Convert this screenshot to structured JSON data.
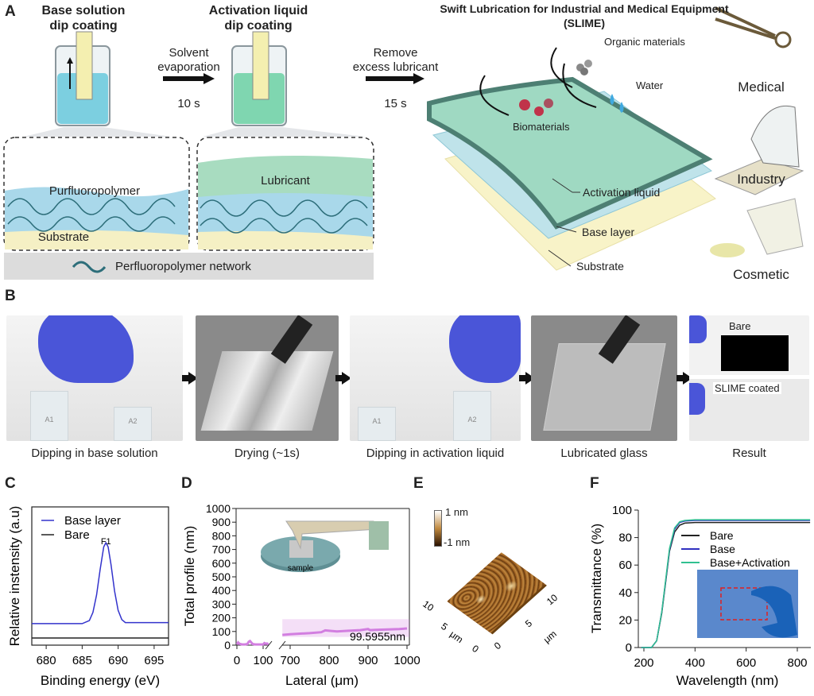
{
  "panel_a": {
    "label": "A",
    "step1_title": "Base solution\ndip coating",
    "step1_line1": "Base solution",
    "step1_line2": "dip coating",
    "arrow1_line1": "Solvent",
    "arrow1_line2": "evaporation",
    "arrow1_time": "10 s",
    "step2_line1": "Activation liquid",
    "step2_line2": "dip coating",
    "arrow2_line1": "Remove",
    "arrow2_line2": "excess lubricant",
    "arrow2_time": "15 s",
    "box_left": {
      "layer_top": "Purfluoropolymer",
      "layer_bottom": "Substrate"
    },
    "box_right": {
      "layer_top": "Lubricant"
    },
    "legend": "Perfluoropolymer network",
    "slime_title_line1": "Swift Lubrication for Industrial and Medical Equipment",
    "slime_title_line2": "(SLIME)",
    "slime_labels": {
      "organic": "Organic materials",
      "water": "Water",
      "bio": "Biomaterials",
      "activation": "Activation liquid",
      "base": "Base layer",
      "substrate": "Substrate"
    },
    "applications": [
      "Medical",
      "Industry",
      "Cosmetic"
    ],
    "colors": {
      "base": "#a9d8ea",
      "lubricant": "#a8dcc0",
      "substrate": "#f5f0c4",
      "network": "#2d6e7a"
    }
  },
  "panel_b": {
    "label": "B",
    "steps": [
      "Dipping in base solution",
      "Drying (~1s)",
      "Dipping in activation liquid",
      "Lubricated glass",
      "Result"
    ],
    "vial_labels": [
      "A1",
      "A2"
    ],
    "result_labels": [
      "Bare",
      "SLIME coated"
    ]
  },
  "chart_data": [
    {
      "panel": "C",
      "type": "line",
      "xlabel": "Binding energy (eV)",
      "ylabel": "Relative instensity (a.u)",
      "xlim": [
        678,
        697
      ],
      "ylim": [
        0,
        1.35
      ],
      "xticks": [
        680,
        685,
        690,
        695
      ],
      "annotation": "F1",
      "legend_placement": "top-left",
      "series": [
        {
          "name": "Base layer",
          "color": "#3333cc",
          "x": [
            678,
            680,
            682,
            684,
            685,
            686,
            686.5,
            687,
            687.5,
            688,
            688.3,
            688.6,
            689,
            689.5,
            690,
            690.5,
            691,
            692,
            694,
            697
          ],
          "y": [
            0.21,
            0.21,
            0.21,
            0.21,
            0.21,
            0.24,
            0.32,
            0.49,
            0.74,
            0.96,
            1.0,
            0.96,
            0.79,
            0.53,
            0.34,
            0.25,
            0.22,
            0.22,
            0.22,
            0.22
          ]
        },
        {
          "name": "Bare",
          "color": "#222222",
          "x": [
            678,
            697
          ],
          "y": [
            0.07,
            0.07
          ]
        }
      ]
    },
    {
      "panel": "D",
      "type": "line",
      "xlabel": "Lateral (μm)",
      "ylabel": "Total profile (nm)",
      "ylim": [
        0,
        1000
      ],
      "yticks": [
        0,
        100,
        200,
        300,
        400,
        500,
        600,
        700,
        800,
        900,
        1000
      ],
      "xticks": [
        0,
        100,
        700,
        800,
        900,
        1000
      ],
      "broken_axis": [
        [
          0,
          120
        ],
        [
          680,
          1000
        ]
      ],
      "inset_label": "sample",
      "annotation": "99.5955nm",
      "band": [
        60,
        190
      ],
      "color": "#d27ee0",
      "series": [
        {
          "x": [
            0,
            5,
            10,
            20,
            30,
            40,
            45,
            50,
            55,
            60,
            70,
            80,
            90,
            100,
            105,
            110,
            115,
            120
          ],
          "y": [
            5,
            20,
            10,
            5,
            5,
            8,
            25,
            30,
            20,
            8,
            5,
            5,
            5,
            5,
            15,
            10,
            12,
            5
          ]
        },
        {
          "x": [
            680,
            700,
            750,
            780,
            790,
            800,
            820,
            850,
            880,
            900,
            905,
            920,
            950,
            980,
            1000
          ],
          "y": [
            75,
            80,
            88,
            95,
            108,
            105,
            100,
            105,
            110,
            118,
            110,
            112,
            115,
            118,
            122
          ]
        }
      ]
    },
    {
      "panel": "E",
      "type": "heatmap",
      "colorbar": [
        "1 nm",
        "-1 nm"
      ],
      "axis_ticks": [
        "0",
        "5",
        "10"
      ],
      "axis_unit": "μm"
    },
    {
      "panel": "F",
      "type": "line",
      "xlabel": "Wavelength (nm)",
      "ylabel": "Transmittance (%)",
      "xlim": [
        190,
        850
      ],
      "ylim": [
        0,
        100
      ],
      "xticks": [
        200,
        400,
        600,
        800
      ],
      "yticks": [
        0,
        20,
        40,
        60,
        80,
        100
      ],
      "legend_placement": "center-right",
      "series": [
        {
          "name": "Bare",
          "color": "#222222",
          "x": [
            190,
            230,
            250,
            270,
            290,
            300,
            320,
            340,
            360,
            400,
            600,
            850
          ],
          "y": [
            0,
            0,
            5,
            25,
            55,
            70,
            84,
            89,
            90.5,
            91,
            91,
            91
          ]
        },
        {
          "name": "Base",
          "color": "#3030c0",
          "x": [
            190,
            230,
            250,
            270,
            290,
            300,
            320,
            340,
            360,
            400,
            600,
            850
          ],
          "y": [
            0,
            0,
            5,
            26,
            56,
            71,
            86,
            91,
            92,
            92.5,
            92.5,
            92.5
          ]
        },
        {
          "name": "Base+Activation",
          "color": "#30c090",
          "x": [
            190,
            230,
            250,
            270,
            290,
            300,
            320,
            340,
            360,
            400,
            600,
            850
          ],
          "y": [
            0,
            0,
            5,
            26,
            57,
            72,
            87,
            91.5,
            92.5,
            93,
            93,
            93
          ]
        }
      ]
    }
  ],
  "labels": {
    "c": "C",
    "d": "D",
    "e": "E",
    "f": "F"
  }
}
